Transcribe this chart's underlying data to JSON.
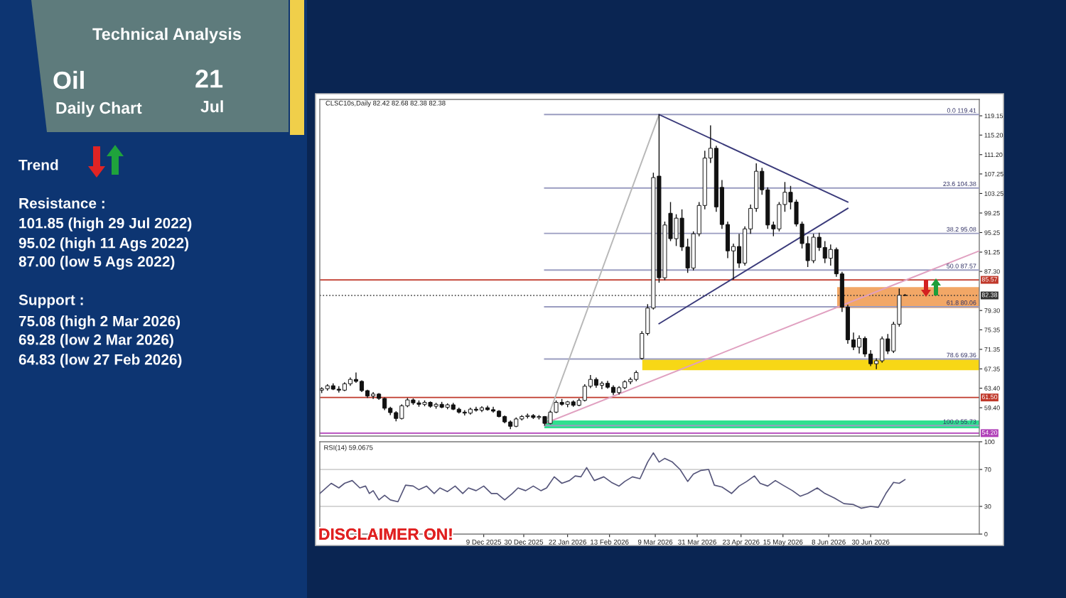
{
  "chart_data": [
    {
      "type": "candlestick",
      "title": "Technical Analysis",
      "annotations": [
        "Oil",
        "Daily Chart",
        "21",
        "Jul",
        "Trend",
        "Resistance :",
        "101.85 (high 29 Jul 2022)",
        "95.02 (high 11 Ags 2022)",
        "87.00 (low 5 Ags 2022)",
        "Support :",
        "75.08 (high 2 Mar 2026)",
        "69.28 (low 2 Mar 2026)",
        "64.83 (low 27 Feb 2026)",
        "CLSC10s,Daily 82.42 82.68 82.38 82.38",
        "DISCLAIMER ON!"
      ],
      "x": [
        "2025-09-15",
        "2025-09-18",
        "2025-09-21",
        "2025-09-24",
        "2025-09-27",
        "2025-09-30",
        "2025-10-03",
        "2025-10-06",
        "2025-10-09",
        "2025-10-12",
        "2025-10-15",
        "2025-10-18",
        "2025-10-21",
        "2025-10-24",
        "2025-10-27",
        "2025-10-30",
        "2025-11-02",
        "2025-11-05",
        "2025-11-08",
        "2025-11-11",
        "2025-11-14",
        "2025-11-17",
        "2025-11-20",
        "2025-11-23",
        "2025-11-26",
        "2025-11-29",
        "2025-12-02",
        "2025-12-05",
        "2025-12-08",
        "2025-12-11",
        "2025-12-14",
        "2025-12-17",
        "2025-12-20",
        "2025-12-23",
        "2025-12-26",
        "2025-12-29",
        "2026-01-01",
        "2026-01-04",
        "2026-01-07",
        "2026-01-10",
        "2026-01-13",
        "2026-01-16",
        "2026-01-19",
        "2026-01-22",
        "2026-01-25",
        "2026-01-28",
        "2026-01-31",
        "2026-02-03",
        "2026-02-06",
        "2026-02-09",
        "2026-02-12",
        "2026-02-15",
        "2026-02-18",
        "2026-02-21",
        "2026-02-24",
        "2026-02-27",
        "2026-03-02",
        "2026-03-05",
        "2026-03-08",
        "2026-03-11",
        "2026-03-14",
        "2026-03-17",
        "2026-03-20",
        "2026-03-23",
        "2026-03-26",
        "2026-03-29",
        "2026-04-01",
        "2026-04-04",
        "2026-04-07",
        "2026-04-10",
        "2026-04-13",
        "2026-04-16",
        "2026-04-19",
        "2026-04-22",
        "2026-04-25",
        "2026-04-28",
        "2026-05-01",
        "2026-05-04",
        "2026-05-07",
        "2026-05-10",
        "2026-05-13",
        "2026-05-16",
        "2026-05-19",
        "2026-05-22",
        "2026-05-25",
        "2026-05-28",
        "2026-05-31",
        "2026-06-03",
        "2026-06-06",
        "2026-06-09",
        "2026-06-12",
        "2026-06-15",
        "2026-06-18",
        "2026-06-21",
        "2026-06-24",
        "2026-06-27",
        "2026-06-30",
        "2026-07-03",
        "2026-07-06",
        "2026-07-09",
        "2026-07-12",
        "2026-07-15",
        "2026-07-18"
      ],
      "ohlc": [
        [
          63.0,
          63.6,
          62.4,
          63.3
        ],
        [
          63.3,
          64.2,
          62.9,
          63.9
        ],
        [
          63.9,
          64.4,
          63.0,
          63.2
        ],
        [
          63.2,
          63.8,
          62.5,
          63.0
        ],
        [
          63.0,
          64.6,
          62.8,
          64.3
        ],
        [
          64.3,
          65.6,
          63.9,
          65.2
        ],
        [
          65.2,
          66.6,
          64.5,
          64.8
        ],
        [
          64.8,
          65.0,
          62.6,
          62.9
        ],
        [
          62.9,
          63.1,
          61.4,
          61.8
        ],
        [
          61.8,
          62.6,
          61.2,
          62.2
        ],
        [
          62.2,
          62.4,
          61.0,
          61.3
        ],
        [
          61.3,
          61.5,
          58.9,
          59.3
        ],
        [
          59.3,
          59.6,
          57.9,
          58.4
        ],
        [
          58.4,
          58.7,
          56.6,
          57.2
        ],
        [
          57.2,
          60.1,
          57.0,
          59.8
        ],
        [
          59.8,
          61.4,
          59.5,
          61.0
        ],
        [
          61.0,
          61.3,
          60.0,
          60.4
        ],
        [
          60.4,
          60.9,
          59.6,
          60.1
        ],
        [
          60.1,
          60.9,
          59.7,
          60.5
        ],
        [
          60.5,
          60.7,
          59.4,
          59.7
        ],
        [
          59.7,
          60.4,
          59.2,
          60.1
        ],
        [
          60.1,
          60.6,
          59.3,
          59.5
        ],
        [
          59.5,
          60.3,
          59.1,
          60.0
        ],
        [
          60.0,
          60.4,
          58.9,
          59.1
        ],
        [
          59.1,
          59.4,
          58.2,
          58.5
        ],
        [
          58.5,
          58.9,
          57.8,
          58.3
        ],
        [
          58.3,
          59.4,
          58.0,
          59.1
        ],
        [
          59.1,
          59.6,
          58.6,
          58.9
        ],
        [
          58.9,
          59.7,
          58.5,
          59.4
        ],
        [
          59.4,
          59.8,
          58.8,
          59.0
        ],
        [
          59.0,
          59.6,
          58.4,
          58.7
        ],
        [
          58.7,
          58.9,
          57.4,
          57.6
        ],
        [
          57.6,
          57.8,
          56.2,
          56.5
        ],
        [
          56.5,
          56.8,
          55.0,
          55.6
        ],
        [
          55.6,
          57.4,
          55.4,
          57.1
        ],
        [
          57.1,
          57.9,
          56.8,
          57.6
        ],
        [
          57.6,
          58.2,
          57.2,
          57.8
        ],
        [
          57.8,
          58.1,
          57.1,
          57.4
        ],
        [
          57.4,
          57.9,
          57.0,
          57.6
        ],
        [
          57.6,
          57.7,
          55.73,
          56.2
        ],
        [
          56.2,
          58.8,
          56.0,
          58.5
        ],
        [
          58.5,
          60.9,
          58.3,
          60.5
        ],
        [
          60.5,
          61.2,
          59.8,
          60.1
        ],
        [
          60.1,
          60.8,
          59.5,
          60.6
        ],
        [
          60.6,
          60.9,
          59.6,
          59.9
        ],
        [
          59.9,
          61.3,
          59.7,
          60.9
        ],
        [
          60.9,
          64.2,
          60.7,
          63.8
        ],
        [
          63.8,
          66.1,
          63.4,
          65.2
        ],
        [
          65.2,
          65.6,
          63.5,
          64.0
        ],
        [
          64.0,
          64.8,
          63.2,
          64.4
        ],
        [
          64.4,
          64.9,
          63.3,
          63.6
        ],
        [
          63.6,
          64.0,
          62.0,
          62.5
        ],
        [
          62.5,
          63.8,
          62.1,
          63.5
        ],
        [
          63.5,
          65.0,
          63.2,
          64.7
        ],
        [
          64.7,
          65.6,
          64.2,
          65.2
        ],
        [
          65.2,
          67.0,
          64.83,
          66.6
        ],
        [
          69.5,
          75.08,
          69.28,
          74.6
        ],
        [
          74.6,
          80.6,
          74.2,
          79.8
        ],
        [
          79.8,
          107.5,
          79.5,
          106.5
        ],
        [
          106.8,
          119.41,
          85.0,
          86.0
        ],
        [
          86.0,
          97.5,
          85.5,
          96.8
        ],
        [
          99.2,
          101.5,
          93.5,
          94.0
        ],
        [
          94.0,
          99.0,
          92.5,
          98.2
        ],
        [
          98.2,
          100.0,
          91.5,
          92.3
        ],
        [
          92.3,
          94.0,
          87.0,
          88.0
        ],
        [
          88.0,
          95.5,
          87.5,
          95.0
        ],
        [
          95.0,
          101.5,
          94.5,
          100.8
        ],
        [
          100.8,
          112.0,
          100.0,
          110.5
        ],
        [
          110.5,
          117.2,
          109.5,
          112.5
        ],
        [
          112.5,
          113.0,
          99.5,
          100.5
        ],
        [
          104.5,
          106.0,
          96.0,
          96.9
        ],
        [
          96.9,
          97.5,
          90.0,
          91.5
        ],
        [
          91.5,
          93.0,
          85.6,
          92.4
        ],
        [
          92.4,
          95.0,
          88.0,
          89.0
        ],
        [
          89.0,
          96.5,
          88.5,
          96.0
        ],
        [
          96.0,
          101.0,
          95.0,
          100.2
        ],
        [
          100.2,
          109.4,
          99.5,
          107.8
        ],
        [
          107.8,
          108.5,
          103.0,
          104.0
        ],
        [
          104.0,
          104.5,
          96.0,
          96.8
        ],
        [
          96.8,
          97.5,
          94.5,
          96.0
        ],
        [
          96.0,
          101.5,
          95.5,
          101.0
        ],
        [
          101.0,
          105.6,
          99.5,
          103.5
        ],
        [
          103.5,
          104.8,
          100.0,
          101.5
        ],
        [
          101.5,
          102.0,
          96.5,
          97.0
        ],
        [
          97.0,
          97.5,
          92.0,
          93.0
        ],
        [
          93.0,
          94.5,
          88.2,
          89.5
        ],
        [
          89.5,
          95.0,
          89.0,
          94.3
        ],
        [
          94.3,
          95.2,
          91.5,
          92.2
        ],
        [
          92.2,
          93.5,
          89.0,
          90.0
        ],
        [
          90.0,
          92.8,
          88.5,
          91.8
        ],
        [
          91.8,
          92.2,
          86.2,
          86.8
        ],
        [
          86.8,
          87.2,
          79.0,
          80.0
        ],
        [
          80.0,
          80.5,
          72.5,
          73.3
        ],
        [
          73.3,
          74.8,
          71.2,
          71.8
        ],
        [
          71.8,
          74.2,
          70.5,
          73.6
        ],
        [
          73.6,
          74.0,
          69.8,
          70.4
        ],
        [
          70.4,
          71.2,
          67.9,
          68.4
        ],
        [
          68.4,
          69.5,
          67.3,
          69.0
        ],
        [
          69.0,
          74.0,
          68.6,
          73.5
        ],
        [
          73.5,
          74.5,
          70.4,
          71.0
        ],
        [
          71.0,
          77.0,
          70.6,
          76.5
        ],
        [
          76.5,
          83.8,
          76.0,
          82.42
        ],
        [
          82.42,
          82.68,
          82.38,
          82.38
        ]
      ],
      "xlim": [
        "2025-09-14",
        "2026-08-26"
      ],
      "ylim": [
        53.6,
        122.5
      ],
      "yticks": [
        {
          "value": 59.4,
          "label": "59.40"
        },
        {
          "value": 63.4,
          "label": "63.40"
        },
        {
          "value": 67.35,
          "label": "67.35"
        },
        {
          "value": 71.35,
          "label": "71.35"
        },
        {
          "value": 75.35,
          "label": "75.35"
        },
        {
          "value": 79.3,
          "label": "79.30"
        },
        {
          "value": 87.3,
          "label": "87.30"
        },
        {
          "value": 91.25,
          "label": "91.25"
        },
        {
          "value": 95.25,
          "label": "95.25"
        },
        {
          "value": 99.25,
          "label": "99.25"
        },
        {
          "value": 103.25,
          "label": "103.25"
        },
        {
          "value": 107.25,
          "label": "107.25"
        },
        {
          "value": 111.2,
          "label": "111.20"
        },
        {
          "value": 115.2,
          "label": "115.20"
        },
        {
          "value": 119.15,
          "label": "119.15"
        }
      ],
      "tick_labels": "y",
      "bands": [
        {
          "axis": "y",
          "from": 55.2,
          "to": 56.8,
          "color": "#2fe08f"
        },
        {
          "axis": "y",
          "from": 67.1,
          "to": 69.28,
          "color": "#f7d716"
        },
        {
          "axis": "y",
          "from": 79.8,
          "to": 84.1,
          "color": "#f2a766"
        }
      ],
      "series": [
        {
          "type": "line",
          "name": "0.0 119.41",
          "x": [
            "2026-01-10",
            "2026-08-26"
          ],
          "values": [
            119.41,
            119.41
          ],
          "color": "#9a9cc0"
        },
        {
          "type": "line",
          "name": "23.6 104.38",
          "x": [
            "2026-01-10",
            "2026-08-26"
          ],
          "values": [
            104.38,
            104.38
          ],
          "color": "#9a9cc0"
        },
        {
          "type": "line",
          "name": "38.2 95.08",
          "x": [
            "2026-01-10",
            "2026-08-26"
          ],
          "values": [
            95.08,
            95.08
          ],
          "color": "#9a9cc0"
        },
        {
          "type": "line",
          "name": "50.0 87.57",
          "x": [
            "2026-01-10",
            "2026-08-26"
          ],
          "values": [
            87.57,
            87.57
          ],
          "color": "#9a9cc0"
        },
        {
          "type": "line",
          "name": "61.8 80.06",
          "x": [
            "2026-01-10",
            "2026-08-26"
          ],
          "values": [
            80.06,
            80.06
          ],
          "color": "#9a9cc0"
        },
        {
          "type": "line",
          "name": "78.6 69.36",
          "x": [
            "2026-01-10",
            "2026-08-26"
          ],
          "values": [
            69.36,
            69.36
          ],
          "color": "#9a9cc0"
        },
        {
          "type": "line",
          "name": "100.0 55.73",
          "x": [
            "2026-01-10",
            "2026-08-26"
          ],
          "values": [
            55.73,
            55.73
          ],
          "color": "#9a9cc0"
        },
        {
          "type": "line",
          "x": [
            "2026-01-10",
            "2026-03-11"
          ],
          "values": [
            55.73,
            119.41
          ],
          "color": "#b8b8b8"
        },
        {
          "type": "line",
          "x": [
            "2026-01-10",
            "2026-08-26"
          ],
          "values": [
            56.2,
            91.5
          ],
          "color": "#e0a0c0"
        },
        {
          "type": "line",
          "x": [
            "2026-03-11",
            "2026-06-18"
          ],
          "values": [
            119.41,
            101.5
          ],
          "color": "#3a3a7a"
        },
        {
          "type": "line",
          "x": [
            "2026-03-11",
            "2026-06-18"
          ],
          "values": [
            76.6,
            100.2
          ],
          "color": "#3a3a7a"
        }
      ],
      "ref_lines": [
        {
          "axis": "y",
          "value": 85.57,
          "label": "85.57",
          "color": "#c0392b"
        },
        {
          "axis": "y",
          "value": 82.38,
          "label": "82.38",
          "color": "#333333",
          "line_style": "dotted"
        },
        {
          "axis": "y",
          "value": 61.5,
          "label": "61.50",
          "color": "#c0392b"
        },
        {
          "axis": "y",
          "value": 54.2,
          "label": "54.20",
          "color": "#b040b8"
        }
      ]
    },
    {
      "type": "line",
      "title": "RSI(14) 59.0675",
      "x": [
        "2025-09-14",
        "2025-09-20",
        "2025-09-24",
        "2025-09-27",
        "2025-10-01",
        "2025-10-05",
        "2025-10-08",
        "2025-10-10",
        "2025-10-12",
        "2025-10-15",
        "2025-10-18",
        "2025-10-21",
        "2025-10-25",
        "2025-10-29",
        "2025-11-02",
        "2025-11-05",
        "2025-11-09",
        "2025-11-13",
        "2025-11-16",
        "2025-11-20",
        "2025-11-24",
        "2025-11-28",
        "2025-12-01",
        "2025-12-05",
        "2025-12-09",
        "2025-12-13",
        "2025-12-16",
        "2025-12-20",
        "2025-12-24",
        "2025-12-27",
        "2025-12-31",
        "2026-01-04",
        "2026-01-08",
        "2026-01-11",
        "2026-01-15",
        "2026-01-19",
        "2026-01-23",
        "2026-01-26",
        "2026-01-29",
        "2026-02-01",
        "2026-02-05",
        "2026-02-10",
        "2026-02-14",
        "2026-02-18",
        "2026-02-21",
        "2026-02-25",
        "2026-03-01",
        "2026-03-05",
        "2026-03-08",
        "2026-03-11",
        "2026-03-14",
        "2026-03-18",
        "2026-03-22",
        "2026-03-26",
        "2026-03-29",
        "2026-04-02",
        "2026-04-06",
        "2026-04-09",
        "2026-04-13",
        "2026-04-18",
        "2026-04-22",
        "2026-04-26",
        "2026-04-30",
        "2026-05-03",
        "2026-05-07",
        "2026-05-11",
        "2026-05-15",
        "2026-05-20",
        "2026-05-24",
        "2026-05-28",
        "2026-06-02",
        "2026-06-06",
        "2026-06-11",
        "2026-06-16",
        "2026-06-21",
        "2026-06-25",
        "2026-06-30",
        "2026-07-04",
        "2026-07-08",
        "2026-07-12",
        "2026-07-15",
        "2026-07-18"
      ],
      "values": [
        44,
        55,
        50,
        55,
        58,
        50,
        52,
        44,
        47,
        37,
        42,
        37,
        35,
        53,
        52,
        48,
        52,
        44,
        50,
        46,
        52,
        44,
        50,
        47,
        52,
        44,
        44,
        37,
        44,
        50,
        47,
        52,
        47,
        50,
        62,
        55,
        58,
        63,
        62,
        72,
        58,
        62,
        56,
        52,
        57,
        62,
        60,
        78,
        88,
        78,
        82,
        78,
        70,
        57,
        65,
        69,
        70,
        53,
        51,
        44,
        52,
        57,
        63,
        55,
        52,
        58,
        53,
        47,
        41,
        44,
        50,
        44,
        39,
        33,
        32,
        28,
        30,
        29,
        44,
        56,
        55,
        59
      ],
      "color": "#55557a",
      "xlim": [
        "2025-09-14",
        "2026-08-26"
      ],
      "ylim": [
        0,
        100
      ],
      "yticks": [
        0,
        30,
        70,
        100
      ],
      "xticks": [
        {
          "value": "2025-12-09",
          "label": "9 Dec 2025"
        },
        {
          "value": "2025-12-30",
          "label": "30 Dec 2025"
        },
        {
          "value": "2026-01-22",
          "label": "22 Jan 2026"
        },
        {
          "value": "2026-02-13",
          "label": "13 Feb 2026"
        },
        {
          "value": "2026-03-09",
          "label": "9 Mar 2026"
        },
        {
          "value": "2026-03-31",
          "label": "31 Mar 2026"
        },
        {
          "value": "2026-04-23",
          "label": "23 Apr 2026"
        },
        {
          "value": "2026-05-15",
          "label": "15 May 2026"
        },
        {
          "value": "2026-06-08",
          "label": "8 Jun 2026"
        },
        {
          "value": "2026-06-30",
          "label": "30 Jun 2026"
        }
      ],
      "ref_lines": [
        {
          "axis": "y",
          "value": 70,
          "color": "#c8c8c8"
        },
        {
          "axis": "y",
          "value": 30,
          "color": "#c8c8c8"
        }
      ]
    }
  ]
}
